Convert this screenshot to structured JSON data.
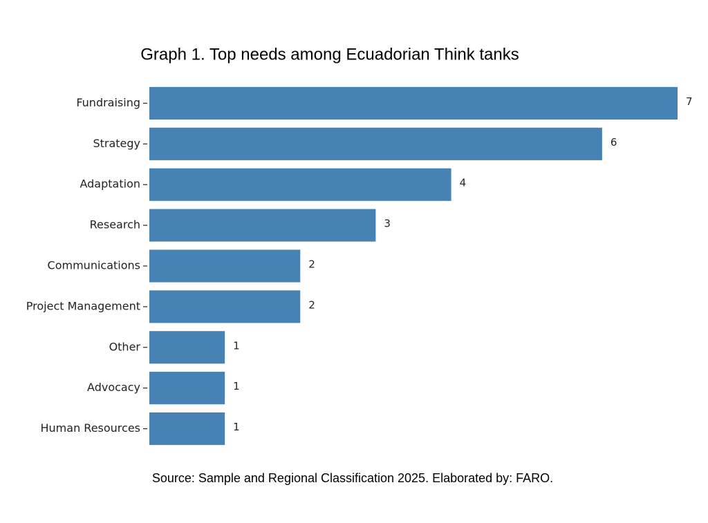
{
  "chart_data": {
    "type": "bar",
    "orientation": "horizontal",
    "title": "Graph 1. Top needs among Ecuadorian Think tanks",
    "source": "Source: Sample and Regional Classification 2025. Elaborated by: FARO.",
    "categories": [
      "Fundraising",
      "Strategy",
      "Adaptation",
      "Research",
      "Communications",
      "Project Management",
      "Other",
      "Advocacy",
      "Human Resources"
    ],
    "values": [
      7,
      6,
      4,
      3,
      2,
      2,
      1,
      1,
      1
    ],
    "color": "#4682b4",
    "xlim": [
      0,
      7
    ]
  }
}
